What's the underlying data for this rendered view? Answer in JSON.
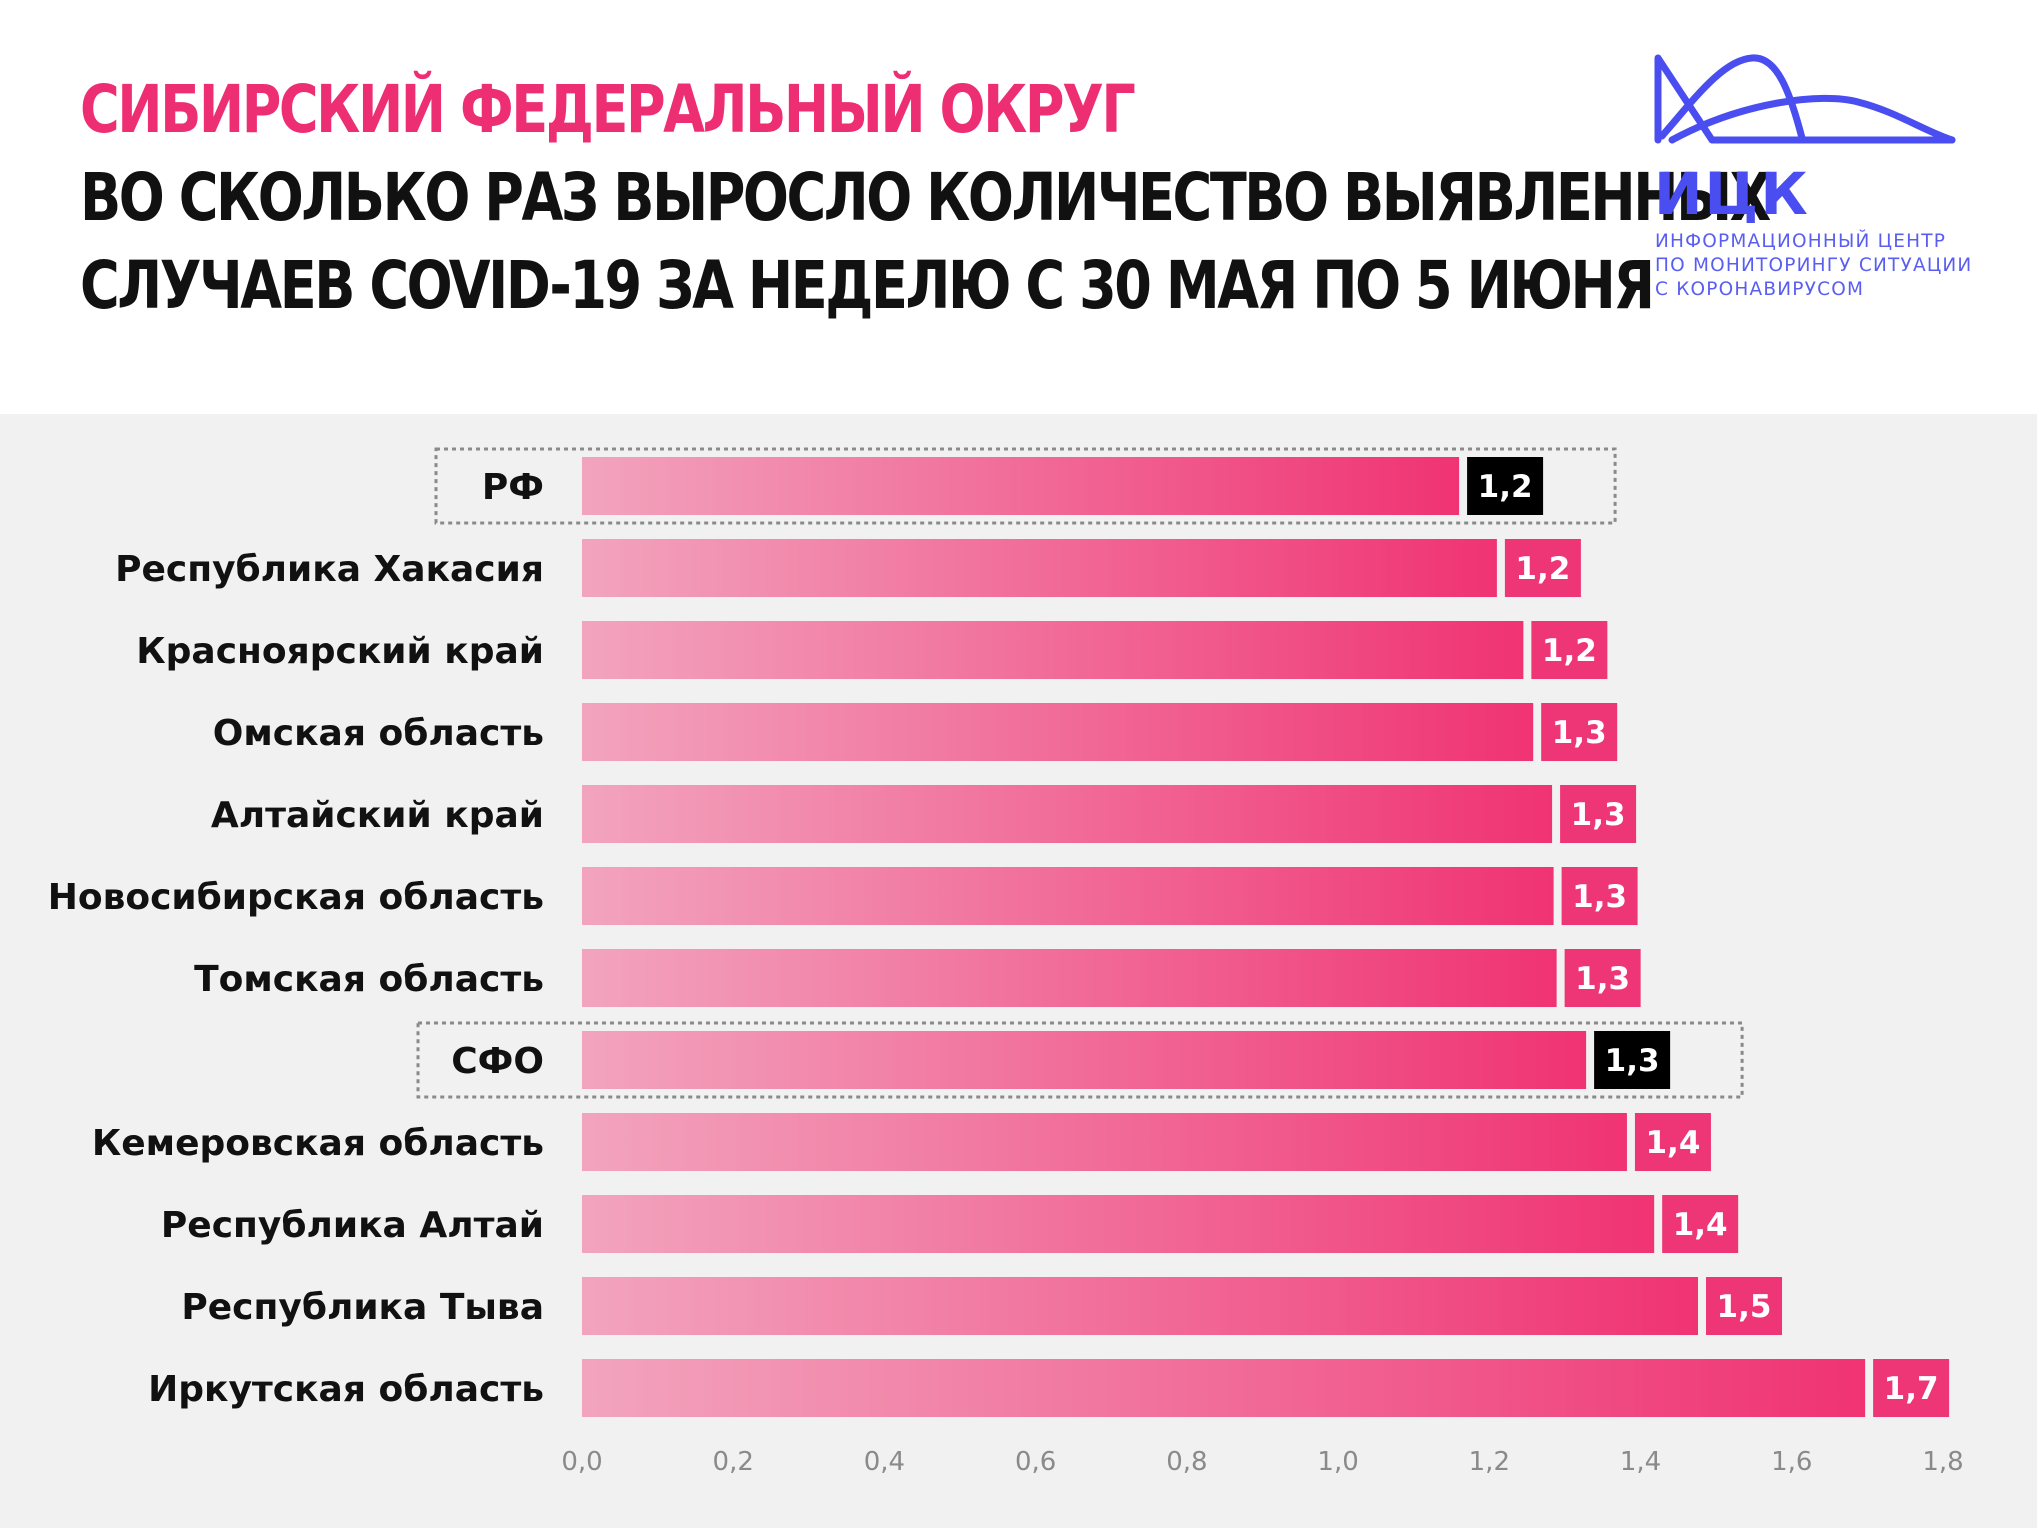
{
  "header": {
    "accent_title": "СИБИРСКИЙ ФЕДЕРАЛЬНЫЙ ОКРУГ",
    "title_line_1": "ВО СКОЛЬКО РАЗ ВЫРОСЛО КОЛИЧЕСТВО ВЫЯВЛЕННЫХ",
    "title_line_2": "СЛУЧАЕВ COVID-19 ЗА НЕДЕЛЮ С 30 МАЯ ПО 5 ИЮНЯ"
  },
  "logo": {
    "abbr": "ИЦК",
    "subtitle_line_1": "ИНФОРМАЦИОННЫЙ ЦЕНТР",
    "subtitle_line_2": "ПО МОНИТОРИНГУ СИТУАЦИИ",
    "subtitle_line_3": "С КОРОНАВИРУСОМ",
    "color": "#4a4ef0"
  },
  "colors": {
    "accent": "#ee2e72",
    "bar_start": "#f2a4be",
    "bar_end": "#f03373",
    "value_box": "#ee3575",
    "highlight_box": "#000000",
    "background": "#f1f1f1"
  },
  "chart_data": {
    "type": "bar",
    "orientation": "horizontal",
    "categories": [
      "РФ",
      "Республика Хакасия",
      "Красноярский край",
      "Омская область",
      "Алтайский край",
      "Новосибирская область",
      "Томская область",
      "СФО",
      "Кемеровская область",
      "Республика Алтай",
      "Республика Тыва",
      "Иркутская область"
    ],
    "values": [
      1.16,
      1.21,
      1.245,
      1.258,
      1.283,
      1.285,
      1.289,
      1.328,
      1.382,
      1.418,
      1.476,
      1.697
    ],
    "value_labels": [
      "1,2",
      "1,2",
      "1,2",
      "1,3",
      "1,3",
      "1,3",
      "1,3",
      "1,3",
      "1,4",
      "1,4",
      "1,5",
      "1,7"
    ],
    "highlighted": [
      "РФ",
      "СФО"
    ],
    "xlim": [
      0,
      1.8
    ],
    "x_ticks": [
      "0,0",
      "0,2",
      "0,4",
      "0,6",
      "0,8",
      "1,0",
      "1,2",
      "1,4",
      "1,6",
      "1,8"
    ],
    "grid": false,
    "legend": "none"
  }
}
